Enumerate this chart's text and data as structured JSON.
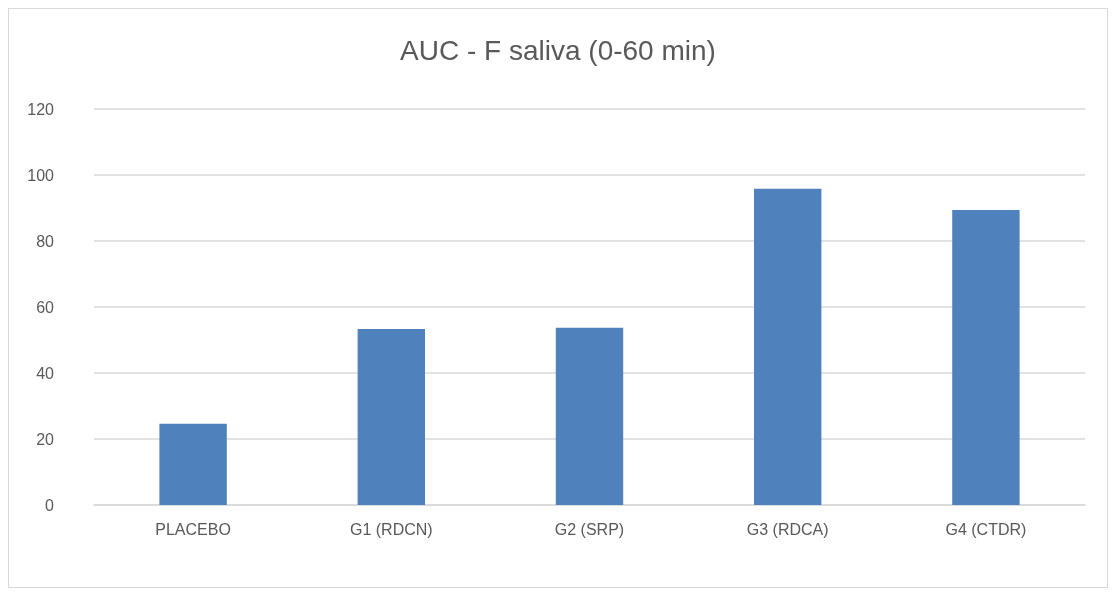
{
  "chart_data": {
    "type": "bar",
    "title": "AUC - F saliva (0-60 min)",
    "categories": [
      "PLACEBO",
      "G1 (RDCN)",
      "G2 (SRP)",
      "G3 (RDCA)",
      "G4 (CTDR)"
    ],
    "values": [
      24.6,
      53.3,
      53.7,
      95.8,
      89.4
    ],
    "color": "#4f81bd",
    "ylim": [
      0,
      120
    ],
    "yticks": [
      0,
      20,
      40,
      60,
      80,
      100,
      120
    ],
    "grid": "y"
  }
}
